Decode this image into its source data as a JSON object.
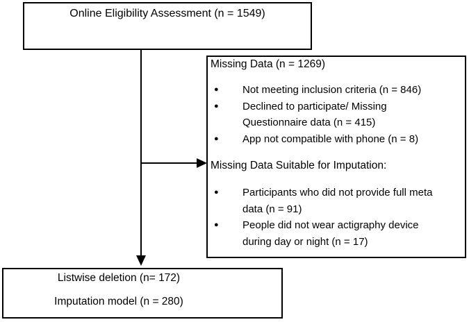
{
  "diagram": {
    "top_box": {
      "label": "Online Eligibility Assessment (n = 1549)"
    },
    "missing_box": {
      "title": "Missing Data (n = 1269)",
      "bullets": [
        "Not meeting inclusion criteria (n = 846)",
        "Declined to participate/ Missing\nQuestionnaire data (n = 415)",
        "App not compatible with phone (n = 8)"
      ],
      "subtitle": "Missing Data Suitable for Imputation:",
      "imputation_bullets": [
        "Participants who did not provide full meta\ndata (n = 91)",
        "People did not wear actigraphy device\nduring day or night (n = 17)"
      ]
    },
    "bottom_box": {
      "line1": "Listwise deletion (n= 172)",
      "line2": "Imputation model (n = 280)"
    },
    "icons": {
      "bullet_glyph": "●"
    },
    "colors": {
      "line": "#000000",
      "background": "#ffffff",
      "text": "#000000"
    }
  }
}
